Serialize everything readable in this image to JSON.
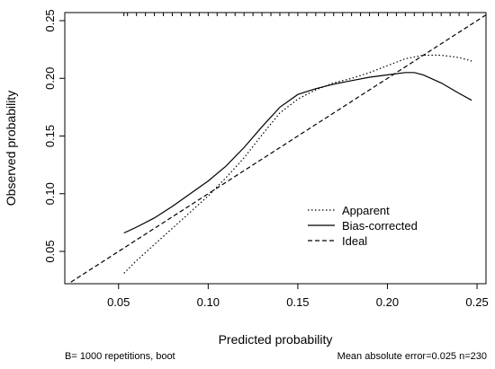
{
  "chart_data": {
    "type": "line",
    "title": "",
    "xlabel": "Predicted probability",
    "ylabel": "Observed probability",
    "xlim": [
      0.02,
      0.255
    ],
    "ylim": [
      0.022,
      0.257
    ],
    "xticks": [
      0.05,
      0.1,
      0.15,
      0.2,
      0.25
    ],
    "xtick_labels": [
      "0.05",
      "0.10",
      "0.15",
      "0.20",
      "0.25"
    ],
    "yticks": [
      0.05,
      0.1,
      0.15,
      0.2,
      0.25
    ],
    "ytick_labels": [
      "0.05",
      "0.10",
      "0.15",
      "0.20",
      "0.25"
    ],
    "grid": false,
    "legend": {
      "position": "center-right",
      "entries": [
        "Apparent",
        "Bias-corrected",
        "Ideal"
      ]
    },
    "series": [
      {
        "name": "Apparent",
        "style": "dotted",
        "x": [
          0.053,
          0.06,
          0.07,
          0.08,
          0.09,
          0.1,
          0.11,
          0.12,
          0.13,
          0.14,
          0.15,
          0.16,
          0.17,
          0.18,
          0.19,
          0.2,
          0.21,
          0.22,
          0.23,
          0.24,
          0.247
        ],
        "y": [
          0.031,
          0.042,
          0.056,
          0.07,
          0.084,
          0.098,
          0.114,
          0.131,
          0.151,
          0.17,
          0.182,
          0.19,
          0.196,
          0.2,
          0.205,
          0.211,
          0.217,
          0.22,
          0.22,
          0.218,
          0.215
        ]
      },
      {
        "name": "Bias-corrected",
        "style": "solid",
        "x": [
          0.053,
          0.06,
          0.07,
          0.08,
          0.09,
          0.1,
          0.11,
          0.12,
          0.13,
          0.14,
          0.15,
          0.16,
          0.17,
          0.18,
          0.19,
          0.2,
          0.21,
          0.215,
          0.22,
          0.23,
          0.24,
          0.247
        ],
        "y": [
          0.066,
          0.071,
          0.079,
          0.089,
          0.1,
          0.111,
          0.124,
          0.14,
          0.158,
          0.175,
          0.186,
          0.191,
          0.195,
          0.198,
          0.201,
          0.203,
          0.205,
          0.205,
          0.203,
          0.196,
          0.187,
          0.181
        ]
      },
      {
        "name": "Ideal",
        "style": "dashed",
        "x": [
          0.02,
          0.255
        ],
        "y": [
          0.02,
          0.255
        ]
      }
    ],
    "rug_x": [
      0.053,
      0.055,
      0.06,
      0.065,
      0.07,
      0.075,
      0.08,
      0.085,
      0.09,
      0.095,
      0.1,
      0.105,
      0.11,
      0.115,
      0.12,
      0.125,
      0.13,
      0.135,
      0.14,
      0.145,
      0.15,
      0.155,
      0.16,
      0.165,
      0.17,
      0.175,
      0.18,
      0.185,
      0.19,
      0.195,
      0.2,
      0.205,
      0.21,
      0.215,
      0.22,
      0.225,
      0.23,
      0.235,
      0.24,
      0.245
    ],
    "footer_left": "B= 1000 repetitions, boot",
    "footer_right": "Mean absolute error=0.025 n=230"
  }
}
